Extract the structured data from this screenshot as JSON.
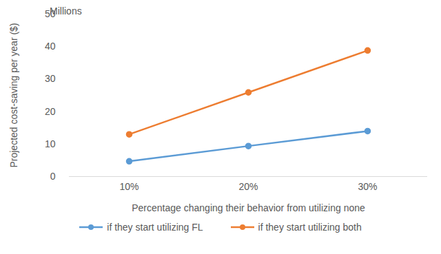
{
  "chart_data": {
    "type": "line",
    "categories": [
      "10%",
      "20%",
      "30%"
    ],
    "series": [
      {
        "name": "if they start utilizing FL",
        "color": "#5b9bd5",
        "values": [
          4.7,
          9.4,
          14.0
        ],
        "marker": "circle",
        "line_style": "solid"
      },
      {
        "name": "if they start utilizing both",
        "color": "#ed7d31",
        "values": [
          13.0,
          25.9,
          38.8
        ],
        "marker": "circle",
        "line_style": "solid"
      }
    ],
    "x_label": "Percentage changing their behavior from utilizing none",
    "y_label": "Projected cost-saving per year ($)",
    "annotations": [
      "Millions"
    ],
    "ylim": [
      0,
      50
    ],
    "yticks": [
      0,
      10,
      20,
      30,
      40,
      50
    ],
    "grid": false,
    "legend": "bottom"
  }
}
